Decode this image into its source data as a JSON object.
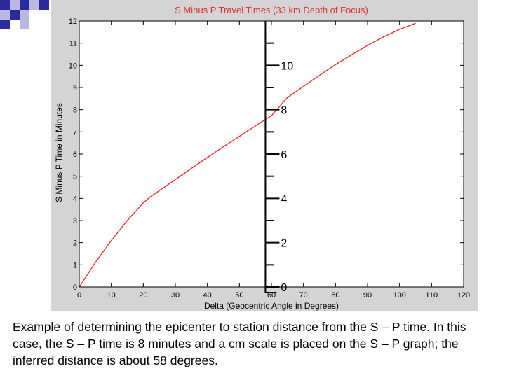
{
  "colors": {
    "background": "#ffffff",
    "figure_bg": "#d4d4d4",
    "plot_bg": "#ffffff",
    "curve": "#e03030",
    "title": "#e03030",
    "text": "#000000",
    "deco_dark": "#2a2aa0",
    "deco_light": "#b8b8e0"
  },
  "decoration": {
    "icon": "checker-squares-icon"
  },
  "chart_data": {
    "type": "line",
    "title": "S Minus P Travel Times (33 km Depth of Focus)",
    "xlabel": "Delta (Geocentric Angle in Degrees)",
    "ylabel": "S Minus P Time in Minutes",
    "xlim": [
      0,
      120
    ],
    "ylim": [
      0,
      12
    ],
    "x_ticks": [
      0,
      10,
      20,
      30,
      40,
      50,
      60,
      70,
      80,
      90,
      100,
      110,
      120
    ],
    "y_ticks": [
      0,
      1,
      2,
      3,
      4,
      5,
      6,
      7,
      8,
      9,
      10,
      11,
      12
    ],
    "grid": false,
    "series": [
      {
        "x": [
          0,
          5,
          10,
          15,
          20,
          22,
          25,
          30,
          35,
          40,
          45,
          50,
          55,
          58,
          60,
          65,
          70,
          75,
          80,
          85,
          90,
          95,
          100,
          105
        ],
        "y": [
          0,
          1.1,
          2.1,
          3.0,
          3.8,
          4.05,
          4.35,
          4.85,
          5.35,
          5.85,
          6.33,
          6.8,
          7.27,
          7.55,
          7.73,
          8.55,
          9.05,
          9.55,
          10.03,
          10.47,
          10.9,
          11.28,
          11.62,
          11.9
        ]
      }
    ],
    "scale_overlay": {
      "axis_x": 59,
      "range": [
        0,
        11
      ],
      "labels": [
        "0",
        "2",
        "4",
        "6",
        "8",
        "10"
      ]
    }
  },
  "caption": "Example of determining the epicenter to station distance from the S – P time. In this case, the S – P time is 8 minutes and a cm scale is placed on the S – P graph; the inferred distance is about 58 degrees."
}
